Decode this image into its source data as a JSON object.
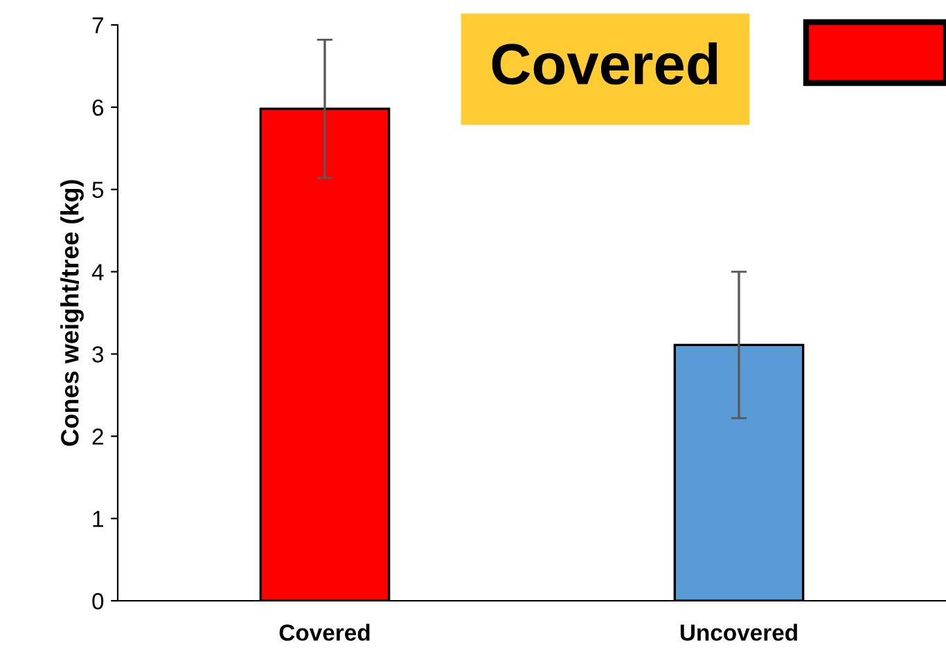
{
  "chart_data": {
    "type": "bar",
    "ylabel": "Cones weight/tree (kg)",
    "categories": [
      "Covered",
      "Uncovered"
    ],
    "values": [
      5.98,
      3.11
    ],
    "errors": [
      0.84,
      0.89
    ],
    "colors": [
      "#ff0000",
      "#5b9bd5"
    ],
    "ylim": [
      0,
      7
    ],
    "yticks": [
      0,
      1,
      2,
      3,
      4,
      5,
      6,
      7
    ],
    "grid": false,
    "annotations": [
      "Covered"
    ]
  }
}
